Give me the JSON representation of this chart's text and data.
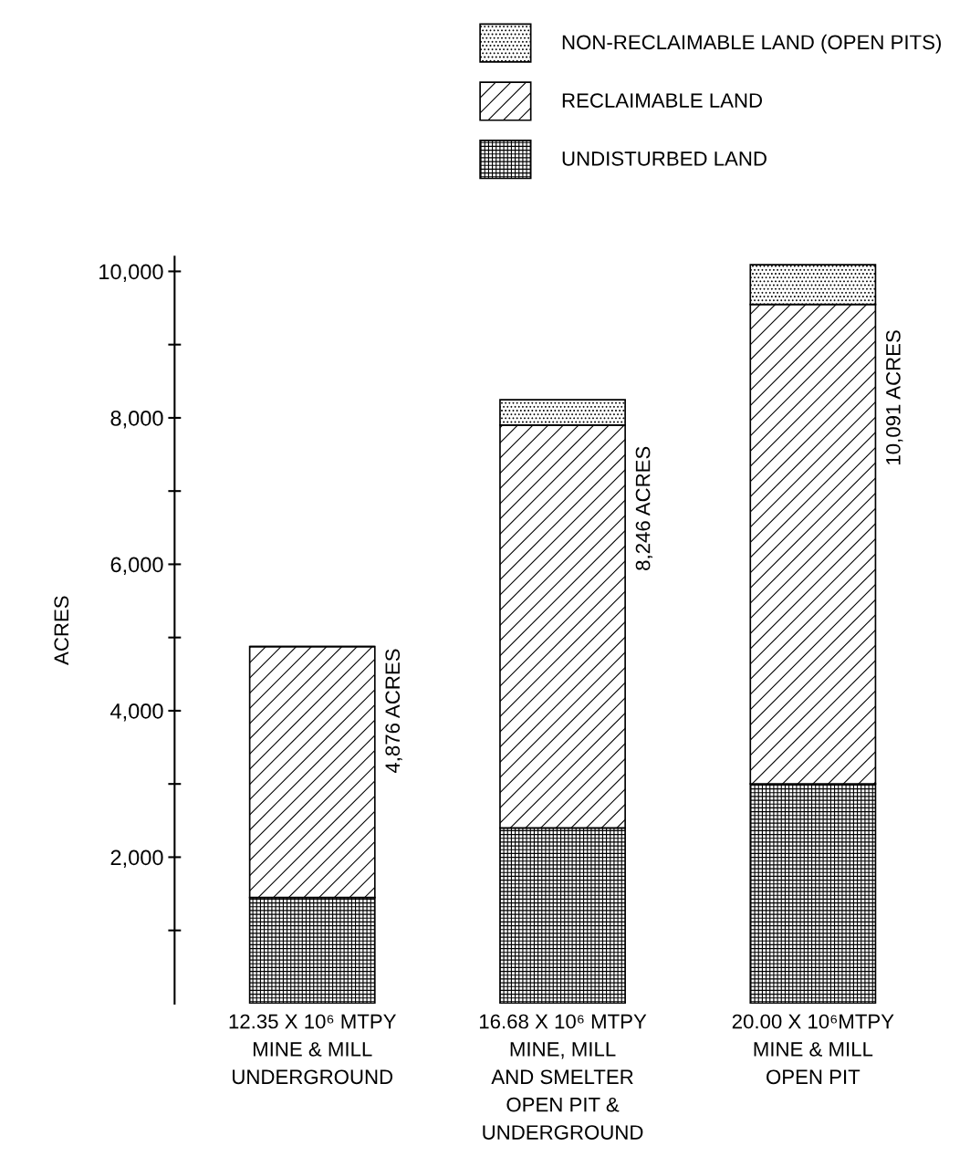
{
  "chart_data": {
    "type": "bar",
    "stacked": true,
    "ylabel": "ACRES",
    "categories": [
      "12.35 X 10⁶ MTPY\nMINE & MILL\nUNDERGROUND",
      "16.68 X 10⁶ MTPY\nMINE, MILL\nAND SMELTER\nOPEN PIT &\nUNDERGROUND",
      "20.00 X 10⁶MTPY\nMINE & MILL\nOPEN PIT"
    ],
    "series": [
      {
        "name": "UNDISTURBED LAND",
        "color": "#000000",
        "values": [
          1450,
          2400,
          3000
        ]
      },
      {
        "name": "RECLAIMABLE LAND",
        "color": "#000000",
        "values": [
          3426,
          5500,
          6550
        ]
      },
      {
        "name": "NON-RECLAIMABLE LAND (OPEN PITS)",
        "color": "#000000",
        "values": [
          0,
          346,
          541
        ]
      }
    ],
    "totals": [
      "4,876 ACRES",
      "8,246 ACRES",
      "10,091 ACRES"
    ],
    "ylim": [
      0,
      10200
    ],
    "yticks": [
      {
        "value": 1000,
        "label": null
      },
      {
        "value": 2000,
        "label": "2,000"
      },
      {
        "value": 3000,
        "label": null
      },
      {
        "value": 4000,
        "label": "4,000"
      },
      {
        "value": 5000,
        "label": null
      },
      {
        "value": 6000,
        "label": "6,000"
      },
      {
        "value": 7000,
        "label": null
      },
      {
        "value": 8000,
        "label": "8,000"
      },
      {
        "value": 9000,
        "label": null
      },
      {
        "value": 10000,
        "label": "10,000"
      }
    ],
    "grid": false,
    "legend": "top right"
  }
}
